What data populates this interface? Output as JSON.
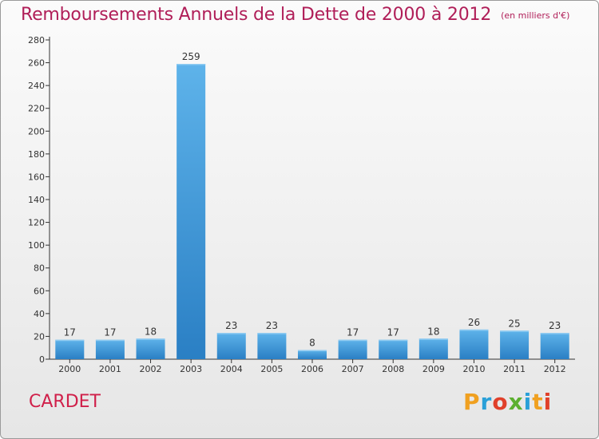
{
  "header": {
    "title": "Remboursements Annuels de la Dette de 2000 à 2012",
    "subtitle": "(en milliers d'€)"
  },
  "footer": {
    "commune": "CARDET",
    "logo": "Proxiti"
  },
  "colors": {
    "title": "#b01e58",
    "commune": "#d0204a",
    "bar_top": "#5eb3ea",
    "bar_bottom": "#2a7fc4",
    "axis": "#333333",
    "grid": "#cfcfcf"
  },
  "chart_data": {
    "type": "bar",
    "categories": [
      "2000",
      "2001",
      "2002",
      "2003",
      "2004",
      "2005",
      "2006",
      "2007",
      "2008",
      "2009",
      "2010",
      "2011",
      "2012"
    ],
    "values": [
      17,
      17,
      18,
      259,
      23,
      23,
      8,
      17,
      17,
      18,
      26,
      25,
      23
    ],
    "data_labels": [
      "17",
      "17",
      "18",
      "259",
      "23",
      "23",
      "8",
      "17",
      "17",
      "18",
      "26",
      "25",
      "23"
    ],
    "title": "Remboursements Annuels de la Dette de 2000 à 2012",
    "xlabel": "",
    "ylabel": "",
    "ylim": [
      0,
      280
    ],
    "yticks": [
      0,
      20,
      40,
      60,
      80,
      100,
      120,
      140,
      160,
      180,
      200,
      220,
      240,
      260,
      280
    ],
    "grid": false,
    "legend": "none"
  }
}
